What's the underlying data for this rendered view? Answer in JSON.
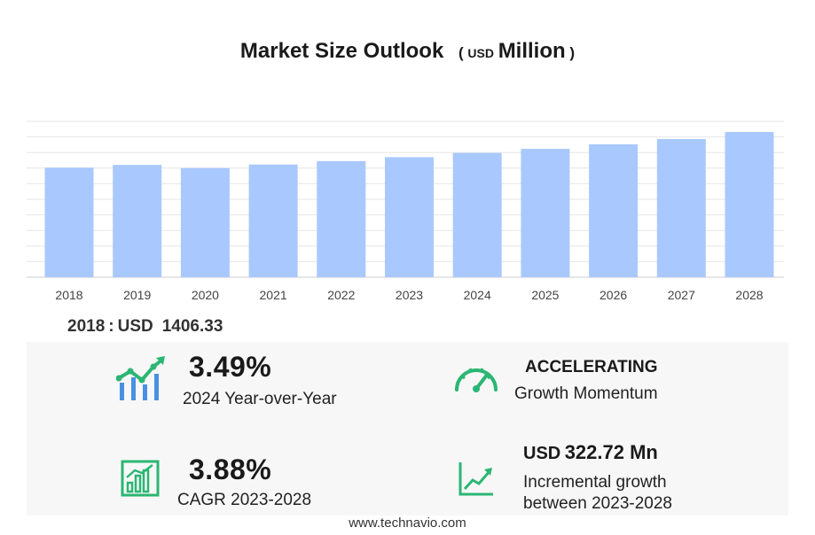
{
  "title": {
    "main": "Market Size Outlook",
    "unit_open": "(",
    "unit_currency": "USD",
    "unit_scale": "Million",
    "unit_close": ")"
  },
  "colors": {
    "bar": "#a9c8fd",
    "grid": "#e6e6e6",
    "icon_green": "#2bb673",
    "icon_blue": "#4a90e2"
  },
  "chart_data": {
    "type": "bar",
    "categories": [
      "2018",
      "2019",
      "2020",
      "2021",
      "2022",
      "2023",
      "2024",
      "2025",
      "2026",
      "2027",
      "2028"
    ],
    "values": [
      1406.33,
      1441,
      1401,
      1446,
      1489,
      1541,
      1595,
      1648,
      1706,
      1773,
      1864
    ],
    "ylim": [
      0,
      2000
    ],
    "grid": true,
    "legend": "none"
  },
  "base_year": {
    "year": "2018",
    "separator": ":",
    "currency": "USD",
    "value": "1406.33"
  },
  "stats": {
    "yoy": {
      "value": "3.49%",
      "label": "2024 Year-over-Year",
      "icon": "growth-chart-icon"
    },
    "momentum": {
      "value": "ACCELERATING",
      "label": "Growth Momentum",
      "icon": "speedometer-icon"
    },
    "cagr": {
      "value": "3.88%",
      "label": "CAGR 2023-2028",
      "icon": "bar-chart-icon"
    },
    "incremental": {
      "currency": "USD",
      "value": "322.72 Mn",
      "label_line1": "Incremental growth",
      "label_line2": "between 2023-2028",
      "icon": "trend-line-icon"
    }
  },
  "footer": {
    "source": "www.technavio.com"
  }
}
